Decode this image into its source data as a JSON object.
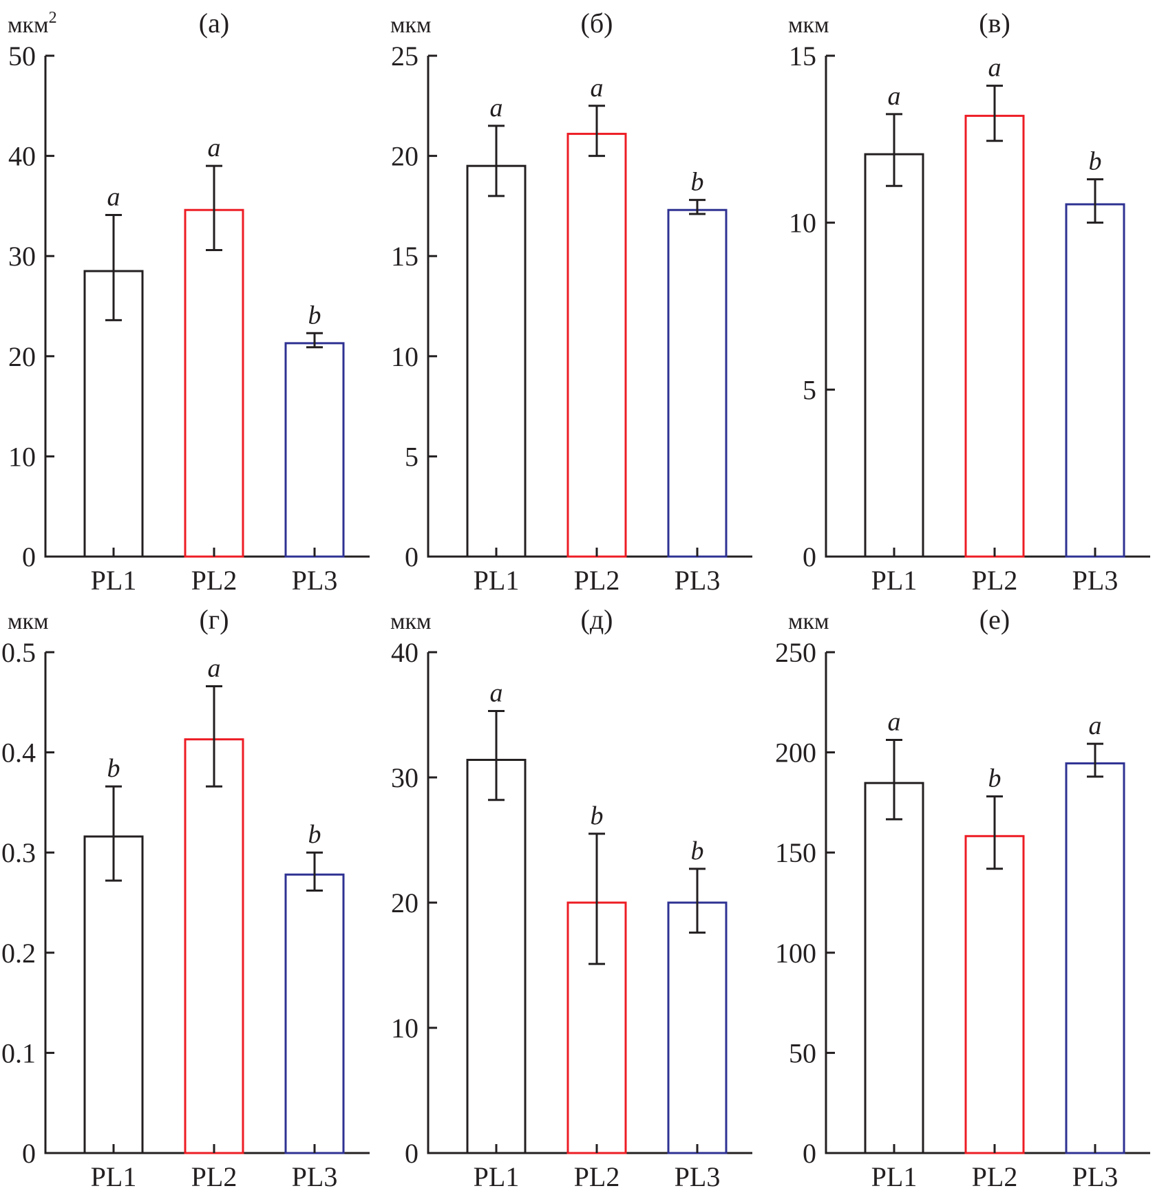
{
  "chart_data": [
    {
      "type": "bar",
      "panel": "(a)",
      "title": "(a)",
      "ylabel": "мкм",
      "ylabel_sup": "2",
      "xlabel": "",
      "categories": [
        "PL1",
        "PL2",
        "PL3"
      ],
      "values": [
        28.5,
        34.6,
        21.3
      ],
      "error_low": [
        23.6,
        30.6,
        20.9
      ],
      "error_high": [
        34.1,
        39.0,
        22.3
      ],
      "significance": [
        "a",
        "a",
        "b"
      ],
      "bar_colors": [
        "#231f20",
        "#ed1c24",
        "#2e3192"
      ],
      "ylim": [
        0,
        50
      ],
      "yticks": [
        0,
        10,
        20,
        30,
        40,
        50
      ],
      "ytick_labels": [
        "0",
        "10",
        "20",
        "30",
        "40",
        "50"
      ],
      "grid": false
    },
    {
      "type": "bar",
      "panel": "(б)",
      "title": "(б)",
      "ylabel": "мкм",
      "ylabel_sup": "",
      "xlabel": "",
      "categories": [
        "PL1",
        "PL2",
        "PL3"
      ],
      "values": [
        19.5,
        21.1,
        17.3
      ],
      "error_low": [
        18.0,
        20.0,
        17.1
      ],
      "error_high": [
        21.5,
        22.5,
        17.8
      ],
      "significance": [
        "a",
        "a",
        "b"
      ],
      "bar_colors": [
        "#231f20",
        "#ed1c24",
        "#2e3192"
      ],
      "ylim": [
        0,
        25
      ],
      "yticks": [
        0,
        5,
        10,
        15,
        20,
        25
      ],
      "ytick_labels": [
        "0",
        "5",
        "10",
        "15",
        "20",
        "25"
      ],
      "grid": false
    },
    {
      "type": "bar",
      "panel": "(в)",
      "title": "(в)",
      "ylabel": "мкм",
      "ylabel_sup": "",
      "xlabel": "",
      "categories": [
        "PL1",
        "PL2",
        "PL3"
      ],
      "values": [
        12.05,
        13.2,
        10.55
      ],
      "error_low": [
        11.1,
        12.45,
        10.0
      ],
      "error_high": [
        13.25,
        14.1,
        11.3
      ],
      "significance": [
        "a",
        "a",
        "b"
      ],
      "bar_colors": [
        "#231f20",
        "#ed1c24",
        "#2e3192"
      ],
      "ylim": [
        0,
        15
      ],
      "yticks": [
        0,
        5,
        10,
        15
      ],
      "ytick_labels": [
        "0",
        "5",
        "10",
        "15"
      ],
      "grid": false
    },
    {
      "type": "bar",
      "panel": "(г)",
      "title": "(г)",
      "ylabel": "мкм",
      "ylabel_sup": "",
      "xlabel": "",
      "categories": [
        "PL1",
        "PL2",
        "PL3"
      ],
      "values": [
        0.316,
        0.413,
        0.278
      ],
      "error_low": [
        0.272,
        0.366,
        0.262
      ],
      "error_high": [
        0.366,
        0.466,
        0.3
      ],
      "significance": [
        "b",
        "a",
        "b"
      ],
      "bar_colors": [
        "#231f20",
        "#ed1c24",
        "#2e3192"
      ],
      "ylim": [
        0,
        0.5
      ],
      "yticks": [
        0,
        0.1,
        0.2,
        0.3,
        0.4,
        0.5
      ],
      "ytick_labels": [
        "0",
        "0.1",
        "0.2",
        "0.3",
        "0.4",
        "0.5"
      ],
      "grid": false
    },
    {
      "type": "bar",
      "panel": "(д)",
      "title": "(д)",
      "ylabel": "мкм",
      "ylabel_sup": "",
      "xlabel": "",
      "categories": [
        "PL1",
        "PL2",
        "PL3"
      ],
      "values": [
        31.4,
        20.0,
        20.0
      ],
      "error_low": [
        28.2,
        15.1,
        17.6
      ],
      "error_high": [
        35.3,
        25.5,
        22.7
      ],
      "significance": [
        "a",
        "b",
        "b"
      ],
      "bar_colors": [
        "#231f20",
        "#ed1c24",
        "#2e3192"
      ],
      "ylim": [
        0,
        40
      ],
      "yticks": [
        0,
        10,
        20,
        30,
        40
      ],
      "ytick_labels": [
        "0",
        "10",
        "20",
        "30",
        "40"
      ],
      "grid": false
    },
    {
      "type": "bar",
      "panel": "(е)",
      "title": "(е)",
      "ylabel": "мкм",
      "ylabel_sup": "",
      "xlabel": "",
      "categories": [
        "PL1",
        "PL2",
        "PL3"
      ],
      "values": [
        184.7,
        158.2,
        194.5
      ],
      "error_low": [
        166.6,
        141.9,
        187.9
      ],
      "error_high": [
        206.2,
        178.0,
        204.3
      ],
      "significance": [
        "a",
        "b",
        "a"
      ],
      "bar_colors": [
        "#231f20",
        "#ed1c24",
        "#2e3192"
      ],
      "ylim": [
        0,
        250
      ],
      "yticks": [
        0,
        50,
        100,
        150,
        200,
        250
      ],
      "ytick_labels": [
        "0",
        "50",
        "100",
        "150",
        "200",
        "250"
      ],
      "grid": false
    }
  ]
}
